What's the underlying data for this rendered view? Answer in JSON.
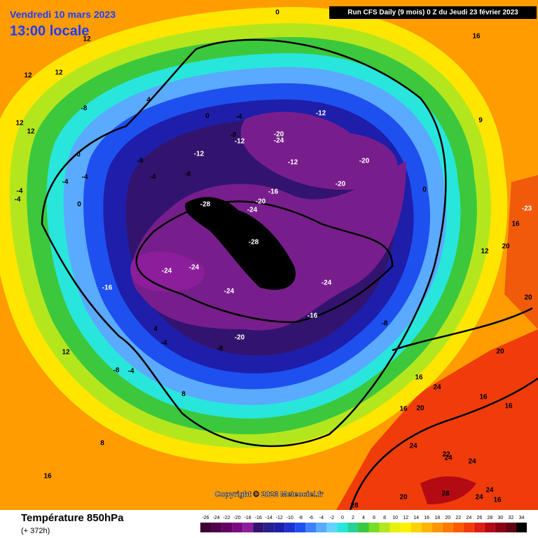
{
  "header": {
    "date": "Vendredi 10 mars 2023",
    "time": "13:00 locale",
    "run": "Run CFS Daily (9 mois) 0 Z du Jeudi 23 février 2023"
  },
  "footer": {
    "title": "Température 850hPa",
    "lead": "(+ 372h)",
    "copyright": "Copyright © 2023 Meteociel.fr"
  },
  "colorbar": {
    "ticks": [
      -26,
      -24,
      -22,
      -20,
      -18,
      -16,
      -14,
      -12,
      -10,
      -8,
      -6,
      -4,
      -2,
      0,
      2,
      4,
      6,
      8,
      10,
      12,
      14,
      16,
      18,
      20,
      22,
      24,
      26,
      28,
      30,
      32,
      34
    ],
    "colors": [
      "#3c0032",
      "#50004b",
      "#640064",
      "#780a82",
      "#8c1e9b",
      "#32146e",
      "#281e8c",
      "#1e1eaa",
      "#1e32d2",
      "#1e50f0",
      "#3c82ff",
      "#5aaaff",
      "#64d2ff",
      "#28e6dc",
      "#28d296",
      "#3cc83c",
      "#78dc28",
      "#b4e61e",
      "#e6f00a",
      "#fff000",
      "#ffd200",
      "#ffb400",
      "#ff9600",
      "#ff7800",
      "#ff5a00",
      "#f03c0a",
      "#dc1e14",
      "#b40a14",
      "#8c0014",
      "#640014",
      "#000000"
    ]
  },
  "contour_labels": [
    0,
    16,
    12,
    12,
    12,
    4,
    -8,
    -4,
    -12,
    0,
    9,
    -20,
    -24,
    -12,
    -8,
    12,
    12,
    0,
    -12,
    -8,
    -20,
    -12,
    -4,
    -4,
    -8,
    -4,
    -20,
    -16,
    0,
    -4,
    -4,
    -28,
    -20,
    -24,
    -23,
    0,
    16,
    20,
    -28,
    12,
    -24,
    -24,
    -16,
    -24,
    -24,
    20,
    -16,
    -8,
    4,
    -20,
    -4,
    12,
    -8,
    20,
    -8,
    -4,
    16,
    24,
    16,
    8,
    16,
    16,
    20,
    8,
    24,
    24,
    24,
    22,
    16,
    28,
    24,
    24,
    16,
    20,
    28
  ]
}
